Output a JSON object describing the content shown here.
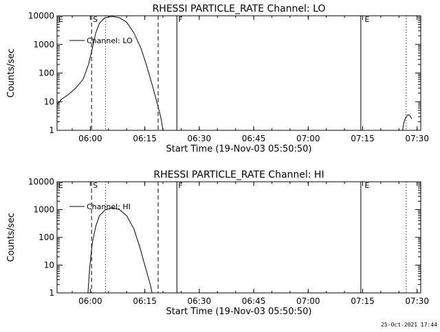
{
  "footer_timestamp": "25-Oct-2021 17:44",
  "chart_data": [
    {
      "type": "line",
      "title": "RHESSI PARTICLE_RATE Channel: LO",
      "xlabel": "Start Time (19-Nov-03 05:50:50)",
      "ylabel": "Counts/sec",
      "y_scale": "log",
      "ylim": [
        1,
        10000
      ],
      "xlim": [
        "05:50:50",
        "07:31:00"
      ],
      "xticks": [
        "06:00",
        "06:15",
        "06:30",
        "06:45",
        "07:00",
        "07:15",
        "07:30"
      ],
      "yticks": [
        "1",
        "10",
        "100",
        "1000",
        "10000"
      ],
      "legend": {
        "position": "top-left",
        "entries": [
          "Channel: LO"
        ]
      },
      "markers": [
        {
          "label": "E",
          "time": "05:50:50",
          "style": "none"
        },
        {
          "label": "S",
          "time": "06:00:20",
          "style": "dashed"
        },
        {
          "label": "",
          "time": "06:04:10",
          "style": "dotted"
        },
        {
          "label": "",
          "time": "06:18:40",
          "style": "dashed"
        },
        {
          "label": "F",
          "time": "06:23:50",
          "style": "solid"
        },
        {
          "label": "",
          "time": "07:14:30",
          "style": "solid"
        },
        {
          "label": "E",
          "time": "07:15:10",
          "style": "none"
        },
        {
          "label": "",
          "time": "07:27:00",
          "style": "dotted"
        }
      ],
      "series": [
        {
          "segments": [
            [
              [
                "05:50:50",
                8
              ],
              [
                "05:52:00",
                12
              ],
              [
                "05:54:00",
                18
              ],
              [
                "05:56:00",
                30
              ],
              [
                "05:58:00",
                60
              ],
              [
                "05:59:30",
                200
              ],
              [
                "06:00:30",
                700
              ],
              [
                "06:01:30",
                2500
              ],
              [
                "06:02:30",
                5500
              ],
              [
                "06:04:00",
                8500
              ],
              [
                "06:06:00",
                9500
              ],
              [
                "06:08:00",
                8500
              ],
              [
                "06:10:00",
                6000
              ],
              [
                "06:12:00",
                2500
              ],
              [
                "06:14:00",
                700
              ],
              [
                "06:15:30",
                180
              ],
              [
                "06:17:00",
                40
              ],
              [
                "06:18:30",
                8
              ],
              [
                "06:19:30",
                2.5
              ],
              [
                "06:20:00",
                1
              ]
            ],
            [
              [
                "07:26:00",
                1
              ],
              [
                "07:26:20",
                1.8
              ],
              [
                "07:26:50",
                2.8
              ],
              [
                "07:27:30",
                3.5
              ],
              [
                "07:28:00",
                3.3
              ],
              [
                "07:28:30",
                2.5
              ]
            ]
          ]
        }
      ]
    },
    {
      "type": "line",
      "title": "RHESSI PARTICLE_RATE Channel: HI",
      "xlabel": "Start Time (19-Nov-03 05:50:50)",
      "ylabel": "Counts/sec",
      "y_scale": "log",
      "ylim": [
        1,
        10000
      ],
      "xlim": [
        "05:50:50",
        "07:31:00"
      ],
      "xticks": [
        "06:00",
        "06:15",
        "06:30",
        "06:45",
        "07:00",
        "07:15",
        "07:30"
      ],
      "yticks": [
        "1",
        "10",
        "100",
        "1000",
        "10000"
      ],
      "legend": {
        "position": "top-left",
        "entries": [
          "Channel: HI"
        ]
      },
      "markers": [
        {
          "label": "E",
          "time": "05:50:50",
          "style": "none"
        },
        {
          "label": "S",
          "time": "06:00:20",
          "style": "dashed"
        },
        {
          "label": "",
          "time": "06:04:10",
          "style": "dotted"
        },
        {
          "label": "",
          "time": "06:18:40",
          "style": "dashed"
        },
        {
          "label": "F",
          "time": "06:23:50",
          "style": "solid"
        },
        {
          "label": "",
          "time": "07:14:30",
          "style": "solid"
        },
        {
          "label": "E",
          "time": "07:15:10",
          "style": "none"
        },
        {
          "label": "",
          "time": "07:27:00",
          "style": "dotted"
        }
      ],
      "series": [
        {
          "segments": [
            [
              [
                "05:59:20",
                1
              ],
              [
                "05:59:50",
                8
              ],
              [
                "06:00:30",
                60
              ],
              [
                "06:01:30",
                250
              ],
              [
                "06:02:30",
                600
              ],
              [
                "06:04:00",
                950
              ],
              [
                "06:06:00",
                1150
              ],
              [
                "06:08:00",
                1000
              ],
              [
                "06:10:00",
                600
              ],
              [
                "06:12:00",
                200
              ],
              [
                "06:13:30",
                50
              ],
              [
                "06:15:00",
                10
              ],
              [
                "06:16:30",
                2
              ],
              [
                "06:17:00",
                1
              ]
            ]
          ]
        }
      ]
    }
  ]
}
